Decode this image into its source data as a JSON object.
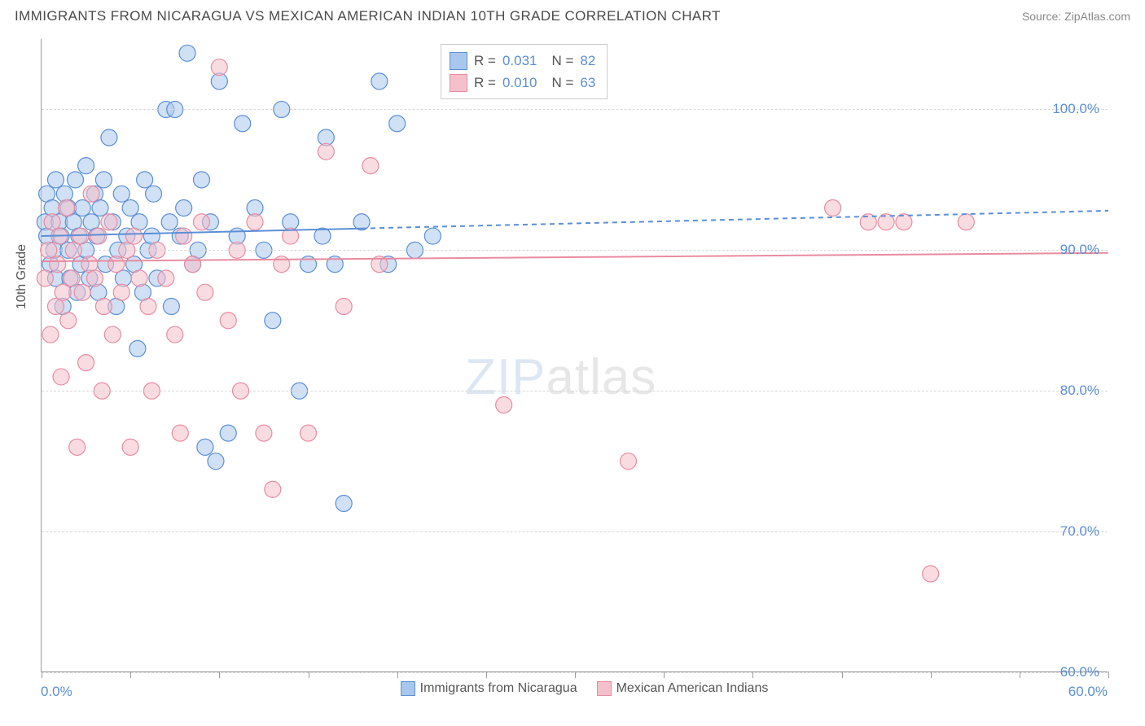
{
  "header": {
    "title": "IMMIGRANTS FROM NICARAGUA VS MEXICAN AMERICAN INDIAN 10TH GRADE CORRELATION CHART",
    "source": "Source: ZipAtlas.com"
  },
  "chart": {
    "type": "scatter",
    "ylabel": "10th Grade",
    "xlim": [
      0,
      60
    ],
    "ylim": [
      60,
      105
    ],
    "xtick_positions": [
      0,
      5,
      10,
      15,
      20,
      25,
      30,
      35,
      40,
      45,
      50,
      55,
      60
    ],
    "xlabel_min": "0.0%",
    "xlabel_max": "60.0%",
    "ytick_labels": [
      {
        "v": 100,
        "t": "100.0%"
      },
      {
        "v": 90,
        "t": "90.0%"
      },
      {
        "v": 80,
        "t": "80.0%"
      },
      {
        "v": 70,
        "t": "70.0%"
      },
      {
        "v": 60,
        "t": "60.0%"
      }
    ],
    "background_color": "#ffffff",
    "grid_color": "#d8d8d8",
    "series": [
      {
        "name": "Immigrants from Nicaragua",
        "color_fill": "#a9c7ec",
        "color_stroke": "#5b8fd6",
        "fill_opacity": 0.55,
        "marker_radius": 10,
        "r_value": "0.031",
        "n_value": "82",
        "trend": {
          "y1": 91.0,
          "y2": 92.8,
          "solid_until_x": 18,
          "stroke_width": 2
        },
        "points": [
          [
            0.2,
            92
          ],
          [
            0.3,
            94
          ],
          [
            0.3,
            91
          ],
          [
            0.5,
            89
          ],
          [
            0.6,
            93
          ],
          [
            0.7,
            90
          ],
          [
            0.8,
            88
          ],
          [
            0.8,
            95
          ],
          [
            1.0,
            92
          ],
          [
            1.1,
            91
          ],
          [
            1.2,
            86
          ],
          [
            1.3,
            94
          ],
          [
            1.5,
            93
          ],
          [
            1.5,
            90
          ],
          [
            1.6,
            88
          ],
          [
            1.8,
            92
          ],
          [
            1.9,
            95
          ],
          [
            2.0,
            87
          ],
          [
            2.1,
            91
          ],
          [
            2.2,
            89
          ],
          [
            2.3,
            93
          ],
          [
            2.5,
            96
          ],
          [
            2.5,
            90
          ],
          [
            2.7,
            88
          ],
          [
            2.8,
            92
          ],
          [
            3.0,
            94
          ],
          [
            3.1,
            91
          ],
          [
            3.2,
            87
          ],
          [
            3.3,
            93
          ],
          [
            3.5,
            95
          ],
          [
            3.6,
            89
          ],
          [
            3.8,
            98
          ],
          [
            4.0,
            92
          ],
          [
            4.2,
            86
          ],
          [
            4.3,
            90
          ],
          [
            4.5,
            94
          ],
          [
            4.6,
            88
          ],
          [
            4.8,
            91
          ],
          [
            5.0,
            93
          ],
          [
            5.2,
            89
          ],
          [
            5.4,
            83
          ],
          [
            5.5,
            92
          ],
          [
            5.7,
            87
          ],
          [
            5.8,
            95
          ],
          [
            6.0,
            90
          ],
          [
            6.2,
            91
          ],
          [
            6.3,
            94
          ],
          [
            6.5,
            88
          ],
          [
            7.0,
            100
          ],
          [
            7.2,
            92
          ],
          [
            7.3,
            86
          ],
          [
            7.5,
            100
          ],
          [
            7.8,
            91
          ],
          [
            8.0,
            93
          ],
          [
            8.2,
            104
          ],
          [
            8.5,
            89
          ],
          [
            8.8,
            90
          ],
          [
            9.0,
            95
          ],
          [
            9.2,
            76
          ],
          [
            9.5,
            92
          ],
          [
            9.8,
            75
          ],
          [
            10.0,
            102
          ],
          [
            10.5,
            77
          ],
          [
            11.0,
            91
          ],
          [
            11.3,
            99
          ],
          [
            12.0,
            93
          ],
          [
            12.5,
            90
          ],
          [
            13.0,
            85
          ],
          [
            13.5,
            100
          ],
          [
            14.0,
            92
          ],
          [
            14.5,
            80
          ],
          [
            15.0,
            89
          ],
          [
            15.8,
            91
          ],
          [
            16.0,
            98
          ],
          [
            16.5,
            89
          ],
          [
            17.0,
            72
          ],
          [
            18.0,
            92
          ],
          [
            19.0,
            102
          ],
          [
            19.5,
            89
          ],
          [
            20.0,
            99
          ],
          [
            21.0,
            90
          ],
          [
            22.0,
            91
          ]
        ]
      },
      {
        "name": "Mexican American Indians",
        "color_fill": "#f4c0cb",
        "color_stroke": "#e98ba1",
        "fill_opacity": 0.55,
        "marker_radius": 10,
        "r_value": "0.010",
        "n_value": "63",
        "trend": {
          "y1": 89.2,
          "y2": 89.8,
          "solid_until_x": 60,
          "stroke_width": 2
        },
        "points": [
          [
            0.2,
            88
          ],
          [
            0.4,
            90
          ],
          [
            0.5,
            84
          ],
          [
            0.6,
            92
          ],
          [
            0.8,
            86
          ],
          [
            0.9,
            89
          ],
          [
            1.0,
            91
          ],
          [
            1.1,
            81
          ],
          [
            1.2,
            87
          ],
          [
            1.4,
            93
          ],
          [
            1.5,
            85
          ],
          [
            1.7,
            88
          ],
          [
            1.8,
            90
          ],
          [
            2.0,
            76
          ],
          [
            2.2,
            91
          ],
          [
            2.3,
            87
          ],
          [
            2.5,
            82
          ],
          [
            2.7,
            89
          ],
          [
            2.8,
            94
          ],
          [
            3.0,
            88
          ],
          [
            3.2,
            91
          ],
          [
            3.4,
            80
          ],
          [
            3.5,
            86
          ],
          [
            3.8,
            92
          ],
          [
            4.0,
            84
          ],
          [
            4.2,
            89
          ],
          [
            4.5,
            87
          ],
          [
            4.8,
            90
          ],
          [
            5.0,
            76
          ],
          [
            5.2,
            91
          ],
          [
            5.5,
            88
          ],
          [
            6.0,
            86
          ],
          [
            6.2,
            80
          ],
          [
            6.5,
            90
          ],
          [
            7.0,
            88
          ],
          [
            7.5,
            84
          ],
          [
            7.8,
            77
          ],
          [
            8.0,
            91
          ],
          [
            8.5,
            89
          ],
          [
            9.0,
            92
          ],
          [
            9.2,
            87
          ],
          [
            10.0,
            103
          ],
          [
            10.5,
            85
          ],
          [
            11.0,
            90
          ],
          [
            11.2,
            80
          ],
          [
            12.0,
            92
          ],
          [
            12.5,
            77
          ],
          [
            13.0,
            73
          ],
          [
            13.5,
            89
          ],
          [
            14.0,
            91
          ],
          [
            15.0,
            77
          ],
          [
            16.0,
            97
          ],
          [
            17.0,
            86
          ],
          [
            18.5,
            96
          ],
          [
            19.0,
            89
          ],
          [
            26.0,
            79
          ],
          [
            33.0,
            75
          ],
          [
            44.5,
            93
          ],
          [
            46.5,
            92
          ],
          [
            47.5,
            92
          ],
          [
            48.5,
            92
          ],
          [
            50.0,
            67
          ],
          [
            52.0,
            92
          ]
        ]
      }
    ],
    "legend_bottom": [
      {
        "label": "Immigrants from Nicaragua",
        "fill": "#a9c7ec",
        "stroke": "#5b8fd6"
      },
      {
        "label": "Mexican American Indians",
        "fill": "#f4c0cb",
        "stroke": "#e98ba1"
      }
    ],
    "watermark": {
      "part1": "ZIP",
      "part2": "atlas"
    }
  }
}
